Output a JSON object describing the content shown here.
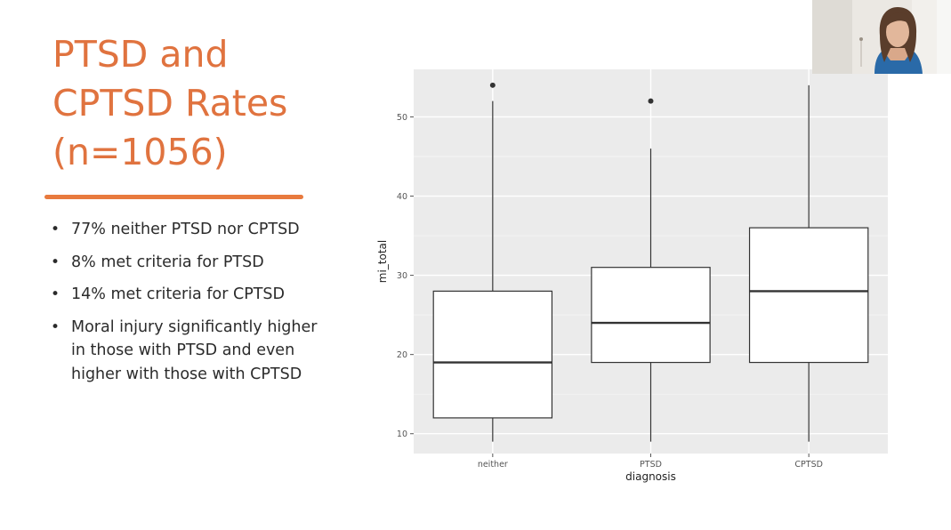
{
  "slide": {
    "title_lines": [
      "PTSD and",
      "CPTSD Rates",
      "(n=1056)"
    ],
    "bullets": [
      "77% neither PTSD nor CPTSD",
      "8% met criteria for PTSD",
      "14% met criteria for CPTSD",
      "Moral injury significantly higher in those with PTSD and even higher with those with CPTSD"
    ],
    "bullet_symbol": "•"
  },
  "colors": {
    "title": "#e0733f",
    "accent_line": "#e87a3e",
    "panel_bg": "#ebebeb",
    "grid": "#ffffff",
    "box_fill": "#ffffff",
    "box_stroke": "#333333"
  },
  "chart_data": {
    "type": "boxplot",
    "xlabel": "diagnosis",
    "ylabel": "mi_total",
    "categories": [
      "neither",
      "PTSD",
      "CPTSD"
    ],
    "ylim": [
      7.5,
      56
    ],
    "yticks": [
      10,
      20,
      30,
      40,
      50
    ],
    "grid": true,
    "boxes": [
      {
        "category": "neither",
        "whisker_low": 9,
        "q1": 12,
        "median": 19,
        "q3": 28,
        "whisker_high": 52,
        "outliers": [
          54
        ]
      },
      {
        "category": "PTSD",
        "whisker_low": 9,
        "q1": 19,
        "median": 24,
        "q3": 31,
        "whisker_high": 46,
        "outliers": [
          52
        ]
      },
      {
        "category": "CPTSD",
        "whisker_low": 9,
        "q1": 19,
        "median": 28,
        "q3": 36,
        "whisker_high": 54,
        "outliers": []
      }
    ]
  },
  "webcam": {
    "icon": "presenter-video-feed"
  }
}
